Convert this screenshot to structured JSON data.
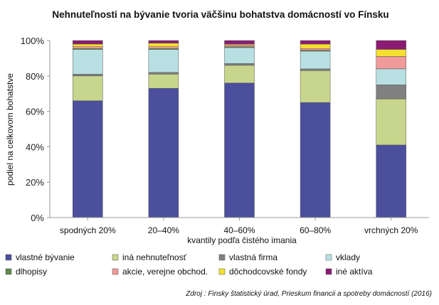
{
  "chart_data": {
    "type": "bar",
    "stacked": true,
    "title": "Nehnuteľnosti na bývanie tvoria väčšinu bohatstva domácností vo Fínsku",
    "xlabel": "kvantily podľa čistého imania",
    "ylabel": "podiel na celkovom bohatstve",
    "ylim": [
      0,
      100
    ],
    "yticks": [
      "0%",
      "20%",
      "40%",
      "60%",
      "80%",
      "100%"
    ],
    "categories": [
      "spodných 20%",
      "20–40%",
      "40–60%",
      "60–80%",
      "vrchných 20%"
    ],
    "grid": false,
    "legend_position": "bottom",
    "series": [
      {
        "name": "vlastné bývanie",
        "color": "#4b4f9c",
        "values": [
          66,
          73,
          76,
          65,
          41
        ]
      },
      {
        "name": "iná nehnuteľnosť",
        "color": "#c8d68d",
        "values": [
          14,
          8,
          10,
          18,
          26
        ]
      },
      {
        "name": "vlastná firma",
        "color": "#808080",
        "values": [
          1,
          1,
          1,
          1,
          8
        ]
      },
      {
        "name": "vklady",
        "color": "#b8e0e2",
        "values": [
          14,
          13,
          9,
          10,
          9
        ]
      },
      {
        "name": "dlhopisy",
        "color": "#5f8a4a",
        "values": [
          0.5,
          0.5,
          0.5,
          0.5,
          0
        ]
      },
      {
        "name": "akcie, verejne obchod.",
        "color": "#f09a9a",
        "values": [
          1,
          1,
          1,
          1,
          7
        ]
      },
      {
        "name": "dôchodcovské fondy",
        "color": "#f4e02e",
        "values": [
          1.5,
          2,
          0.5,
          2.5,
          4
        ]
      },
      {
        "name": "iné aktíva",
        "color": "#8b1a73",
        "values": [
          2,
          1.5,
          2,
          2,
          5
        ]
      }
    ],
    "source": "Zdroj : Finsky štatistický úrad, Prieskum financii a spotreby domácností (2016)"
  }
}
